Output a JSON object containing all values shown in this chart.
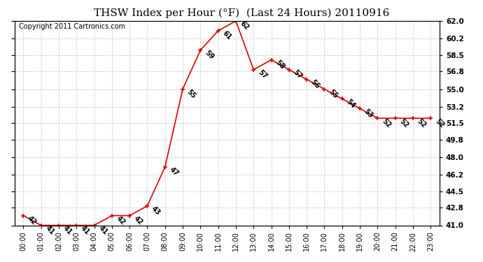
{
  "title": "THSW Index per Hour (°F)  (Last 24 Hours) 20110916",
  "copyright": "Copyright 2011 Cartronics.com",
  "hours": [
    "00:00",
    "01:00",
    "02:00",
    "03:00",
    "04:00",
    "05:00",
    "06:00",
    "07:00",
    "08:00",
    "09:00",
    "10:00",
    "11:00",
    "12:00",
    "13:00",
    "14:00",
    "15:00",
    "16:00",
    "17:00",
    "18:00",
    "19:00",
    "20:00",
    "21:00",
    "22:00",
    "23:00"
  ],
  "values": [
    42,
    41,
    41,
    41,
    41,
    42,
    42,
    43,
    47,
    55,
    59,
    61,
    62,
    57,
    58,
    57,
    56,
    55,
    54,
    53,
    52,
    52,
    52,
    52
  ],
  "line_color": "#dd0000",
  "marker_color": "#dd0000",
  "bg_color": "#ffffff",
  "grid_color": "#cccccc",
  "ylim_min": 41.0,
  "ylim_max": 62.0,
  "ytick_values": [
    41.0,
    42.8,
    44.5,
    46.2,
    48.0,
    49.8,
    51.5,
    53.2,
    55.0,
    56.8,
    58.5,
    60.2,
    62.0
  ],
  "title_fontsize": 11,
  "copyright_fontsize": 7,
  "label_fontsize": 7,
  "xtick_fontsize": 7,
  "ytick_fontsize": 7.5
}
